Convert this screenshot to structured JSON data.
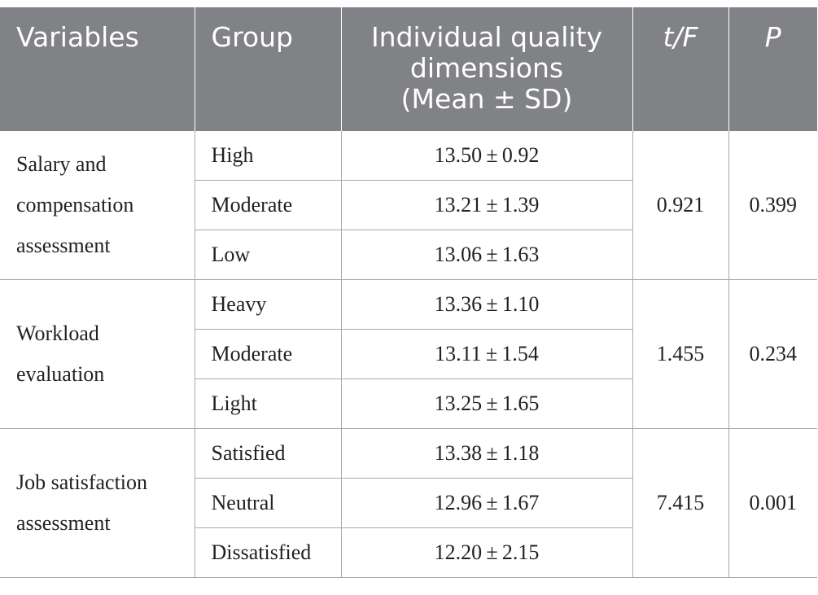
{
  "header": {
    "variables": "Variables",
    "group": "Group",
    "dimension_line1": "Individual quality",
    "dimension_line2": "dimensions",
    "dimension_line3": "(Mean ± SD)",
    "tf": "t/F",
    "p": "P"
  },
  "sections": [
    {
      "variable_line1": "Salary and",
      "variable_line2": "compensation",
      "variable_line3": "assessment",
      "tf": "0.921",
      "p": "0.399",
      "rows": [
        {
          "group": "High",
          "value": "13.50 ± 0.92"
        },
        {
          "group": "Moderate",
          "value": "13.21 ± 1.39"
        },
        {
          "group": "Low",
          "value": "13.06 ± 1.63"
        }
      ]
    },
    {
      "variable_line1": "Workload",
      "variable_line2": "evaluation",
      "tf": "1.455",
      "p": "0.234",
      "rows": [
        {
          "group": "Heavy",
          "value": "13.36 ± 1.10"
        },
        {
          "group": "Moderate",
          "value": "13.11 ± 1.54"
        },
        {
          "group": "Light",
          "value": "13.25 ± 1.65"
        }
      ]
    },
    {
      "variable_line1": "Job satisfaction",
      "variable_line2": "assessment",
      "tf": "7.415",
      "p": "0.001",
      "rows": [
        {
          "group": "Satisfied",
          "value": "13.38 ± 1.18"
        },
        {
          "group": "Neutral",
          "value": "12.96 ± 1.67"
        },
        {
          "group": "Dissatisfied",
          "value": "12.20 ± 2.15"
        }
      ]
    }
  ]
}
